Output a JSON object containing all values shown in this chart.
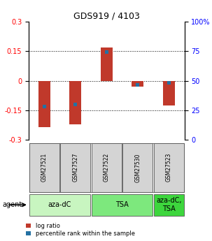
{
  "title": "GDS919 / 4103",
  "samples": [
    "GSM27521",
    "GSM27527",
    "GSM27522",
    "GSM27530",
    "GSM27523"
  ],
  "log_ratios": [
    -0.235,
    -0.22,
    0.168,
    -0.03,
    -0.125
  ],
  "percentile_ranks_scaled": [
    -0.13,
    -0.12,
    0.145,
    -0.02,
    -0.01
  ],
  "ylim": [
    -0.3,
    0.3
  ],
  "yticks_left": [
    -0.3,
    -0.15,
    0.0,
    0.15,
    0.3
  ],
  "ytick_labels_left": [
    "-0.3",
    "-0.15",
    "0",
    "0.15",
    "0.3"
  ],
  "yticks_right_pct": [
    0,
    25,
    50,
    75,
    100
  ],
  "ytick_labels_right": [
    "0",
    "25",
    "50",
    "75",
    "100%"
  ],
  "hlines": [
    -0.15,
    0.0,
    0.15
  ],
  "bar_color": "#c0392b",
  "percentile_color": "#2471a3",
  "agent_groups": [
    {
      "label": "aza-dC",
      "span": 2,
      "color": "#c8f5c0"
    },
    {
      "label": "TSA",
      "span": 2,
      "color": "#7de87d"
    },
    {
      "label": "aza-dC,\nTSA",
      "span": 1,
      "color": "#3dd63d"
    }
  ],
  "agent_label": "agent",
  "legend_log_ratio": "log ratio",
  "legend_percentile": "percentile rank within the sample",
  "bar_width": 0.38,
  "pct_bar_width": 0.12,
  "pct_bar_height": 0.018,
  "background_color": "#ffffff",
  "sample_box_color": "#d4d4d4",
  "title_fontsize": 9,
  "tick_fontsize": 7,
  "sample_fontsize": 5.5,
  "agent_fontsize": 7,
  "legend_fontsize": 6
}
